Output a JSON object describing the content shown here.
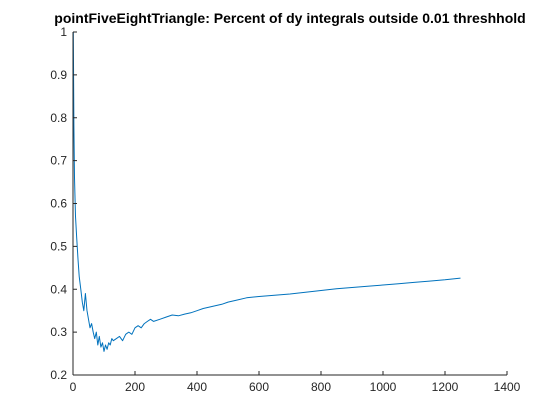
{
  "chart_data": {
    "type": "line",
    "title": "pointFiveEightTriangle: Percent of dy integrals outside 0.01 threshhold",
    "xlabel": "",
    "ylabel": "",
    "xlim": [
      0,
      1400
    ],
    "ylim": [
      0.2,
      1
    ],
    "x_ticks": [
      0,
      200,
      400,
      600,
      800,
      1000,
      1200,
      1400
    ],
    "y_ticks": [
      0.2,
      0.3,
      0.4,
      0.5,
      0.6,
      0.7,
      0.8,
      0.9,
      1
    ],
    "grid": false,
    "line_color": "#0072BD",
    "series": [
      {
        "x": [
          1,
          3,
          5,
          8,
          12,
          16,
          20,
          25,
          30,
          35,
          40,
          45,
          50,
          55,
          60,
          65,
          70,
          75,
          80,
          85,
          90,
          95,
          100,
          105,
          110,
          115,
          120,
          125,
          130,
          140,
          150,
          160,
          170,
          180,
          190,
          200,
          210,
          220,
          230,
          240,
          250,
          260,
          280,
          300,
          320,
          340,
          360,
          380,
          400,
          420,
          450,
          480,
          500,
          530,
          560,
          600,
          650,
          700,
          750,
          800,
          850,
          900,
          950,
          1000,
          1050,
          1100,
          1150,
          1200,
          1250
        ],
        "values": [
          1.0,
          0.78,
          0.66,
          0.57,
          0.52,
          0.47,
          0.43,
          0.4,
          0.37,
          0.35,
          0.39,
          0.35,
          0.33,
          0.31,
          0.32,
          0.3,
          0.285,
          0.3,
          0.27,
          0.29,
          0.265,
          0.275,
          0.255,
          0.27,
          0.26,
          0.275,
          0.27,
          0.285,
          0.28,
          0.285,
          0.29,
          0.28,
          0.295,
          0.3,
          0.295,
          0.31,
          0.315,
          0.31,
          0.32,
          0.325,
          0.33,
          0.325,
          0.33,
          0.335,
          0.34,
          0.338,
          0.342,
          0.345,
          0.35,
          0.355,
          0.36,
          0.365,
          0.37,
          0.375,
          0.38,
          0.383,
          0.386,
          0.389,
          0.393,
          0.397,
          0.401,
          0.404,
          0.407,
          0.41,
          0.413,
          0.416,
          0.419,
          0.422,
          0.426
        ]
      }
    ]
  }
}
